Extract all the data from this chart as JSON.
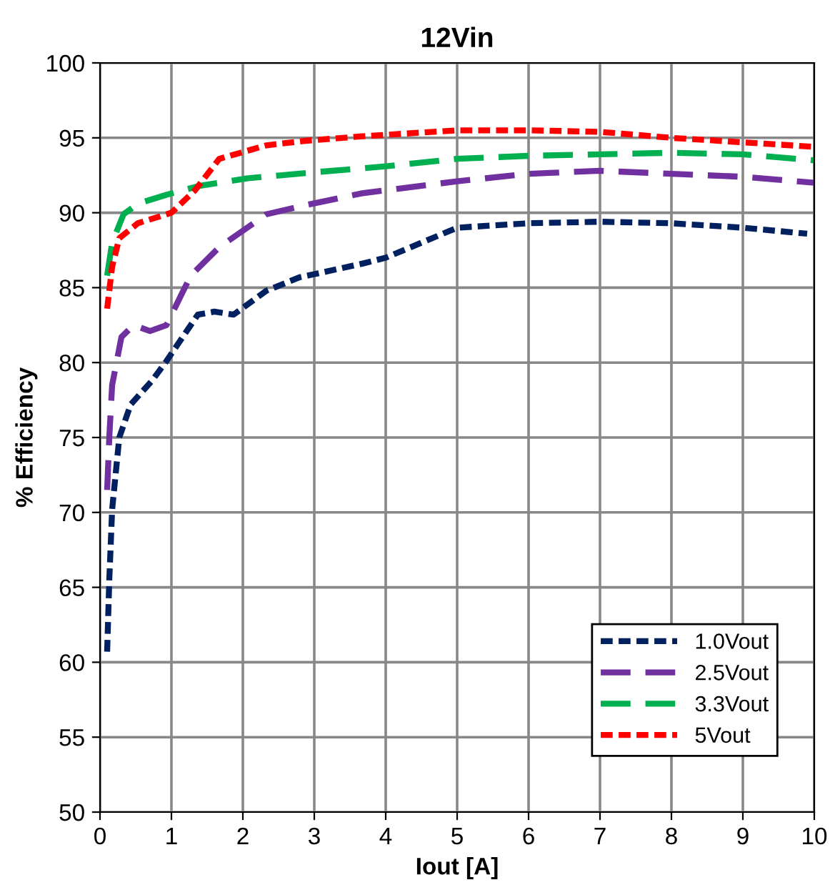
{
  "chart_data": {
    "type": "line",
    "title": "12Vin",
    "xlabel": "Iout [A]",
    "ylabel": "% Efficiency",
    "xlim": [
      0,
      10
    ],
    "xticks": [
      0,
      1,
      2,
      3,
      4,
      5,
      6,
      7,
      8,
      9,
      10
    ],
    "ylim": [
      50,
      100
    ],
    "yticks": [
      50,
      55,
      60,
      65,
      70,
      75,
      80,
      85,
      90,
      95,
      100
    ],
    "grid": true,
    "legend": "bottom right",
    "marker": "none",
    "series": [
      {
        "name": "1.0Vout",
        "color": "#002060",
        "line_style": "dotted",
        "x": [
          0.1,
          0.13,
          0.17,
          0.27,
          0.43,
          0.73,
          0.93,
          1.37,
          1.6,
          1.87,
          2.33,
          2.8,
          3.0,
          3.67,
          4,
          5,
          6,
          7,
          8,
          9,
          9.9
        ],
        "values": [
          60.7,
          65.5,
          70.2,
          75.0,
          77.2,
          78.8,
          80.1,
          83.2,
          83.4,
          83.2,
          84.8,
          85.7,
          85.9,
          86.6,
          87.0,
          89.0,
          89.3,
          89.4,
          89.3,
          89.0,
          88.6
        ]
      },
      {
        "name": "2.5Vout",
        "color": "#7030a0",
        "line_style": "dashed",
        "x": [
          0.1,
          0.13,
          0.17,
          0.3,
          0.47,
          0.7,
          0.93,
          1.27,
          1.67,
          2.33,
          2.87,
          3.67,
          4,
          5,
          6,
          7,
          8,
          9,
          10
        ],
        "values": [
          71.5,
          75.0,
          78.5,
          81.7,
          82.5,
          82.1,
          82.5,
          85.8,
          87.7,
          89.9,
          90.5,
          91.3,
          91.5,
          92.1,
          92.6,
          92.8,
          92.6,
          92.4,
          92.0
        ]
      },
      {
        "name": "3.3Vout",
        "color": "#00b050",
        "line_style": "dashed",
        "x": [
          0.1,
          0.17,
          0.33,
          0.53,
          0.93,
          1.4,
          2.07,
          3.0,
          4,
          5,
          6,
          7,
          8,
          9,
          10
        ],
        "values": [
          85.8,
          88.0,
          89.9,
          90.6,
          91.2,
          91.8,
          92.3,
          92.7,
          93.1,
          93.6,
          93.8,
          93.9,
          94.0,
          93.9,
          93.5
        ]
      },
      {
        "name": "5Vout",
        "color": "#ff0000",
        "line_style": "dotted",
        "x": [
          0.1,
          0.17,
          0.27,
          0.53,
          1.0,
          1.33,
          1.67,
          2.33,
          2.87,
          3.67,
          4,
          5,
          6,
          7,
          8,
          9,
          10
        ],
        "values": [
          83.6,
          86.4,
          88.3,
          89.3,
          90.0,
          91.5,
          93.6,
          94.5,
          94.8,
          95.1,
          95.2,
          95.5,
          95.5,
          95.4,
          95.0,
          94.7,
          94.4
        ]
      }
    ]
  }
}
